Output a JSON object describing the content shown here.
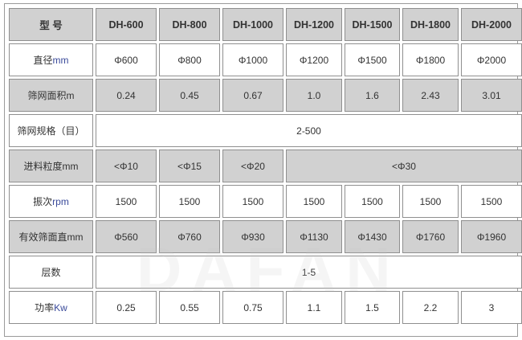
{
  "header": {
    "label": "型 号",
    "models": [
      "DH-600",
      "DH-800",
      "DH-1000",
      "DH-1200",
      "DH-1500",
      "DH-1800",
      "DH-2000"
    ]
  },
  "rows": {
    "diameter": {
      "label": "直径",
      "unit": "mm",
      "values": [
        "Φ600",
        "Φ800",
        "Φ1000",
        "Φ1200",
        "Φ1500",
        "Φ1800",
        "Φ2000"
      ]
    },
    "screen_area": {
      "label": "筛网面积",
      "unit": "m",
      "values": [
        "0.24",
        "0.45",
        "0.67",
        "1.0",
        "1.6",
        "2.43",
        "3.01"
      ]
    },
    "mesh_spec": {
      "label": "筛网规格（目）",
      "value": "2-500"
    },
    "feed_size": {
      "label": "进料粒度",
      "unit": "mm",
      "values": [
        "<Φ10",
        "<Φ15",
        "<Φ20",
        "<Φ30"
      ]
    },
    "vibration": {
      "label": "振次",
      "unit": "rpm",
      "values": [
        "1500",
        "1500",
        "1500",
        "1500",
        "1500",
        "1500",
        "1500"
      ]
    },
    "effective_diameter": {
      "label": "有效筛面直",
      "unit": "mm",
      "values": [
        "Φ560",
        "Φ760",
        "Φ930",
        "Φ1130",
        "Φ1430",
        "Φ1760",
        "Φ1960"
      ]
    },
    "layers": {
      "label": "层数",
      "value": "1-5"
    },
    "power": {
      "label": "功率",
      "unit": "Kw",
      "values": [
        "0.25",
        "0.55",
        "0.75",
        "1.1",
        "1.5",
        "2.2",
        "3"
      ]
    }
  },
  "watermark": "DAFAN",
  "colors": {
    "header_bg": "#d1d1d1",
    "border": "#8f8f8f",
    "unit_text": "#3a4a9a"
  }
}
